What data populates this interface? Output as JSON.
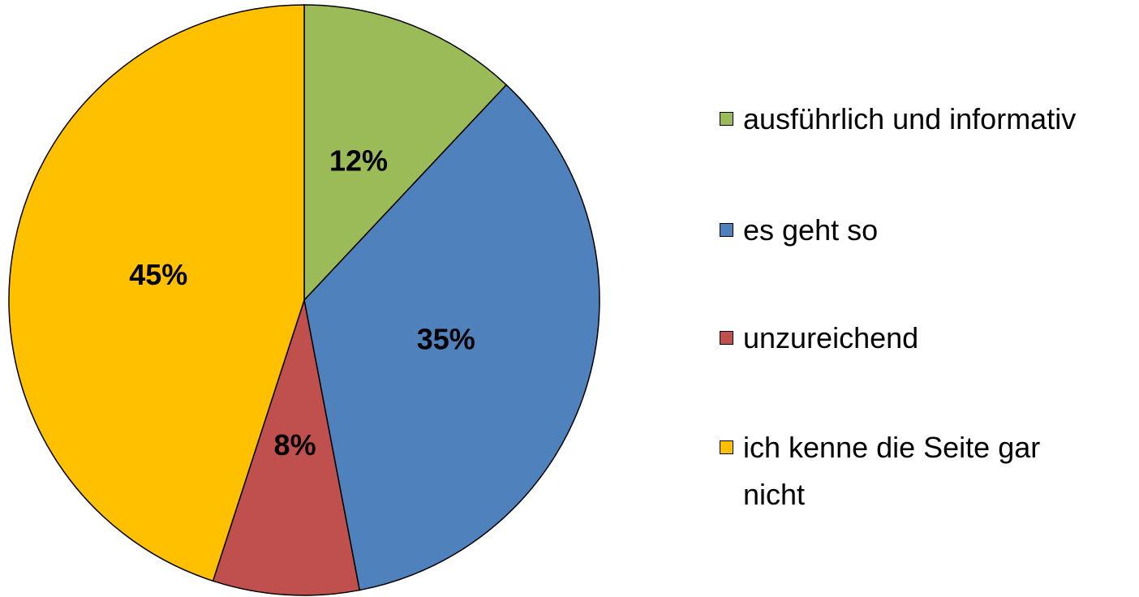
{
  "chart_data": {
    "type": "pie",
    "categories": [
      "ausführlich und informativ",
      "es geht so",
      "unzureichend",
      "ich kenne die Seite gar nicht"
    ],
    "values": [
      12,
      35,
      8,
      45
    ],
    "value_labels": [
      "12%",
      "35%",
      "8%",
      "45%"
    ],
    "colors": [
      "#9bbb59",
      "#4f81bd",
      "#c0504d",
      "#ffc000"
    ],
    "legend": "right"
  }
}
